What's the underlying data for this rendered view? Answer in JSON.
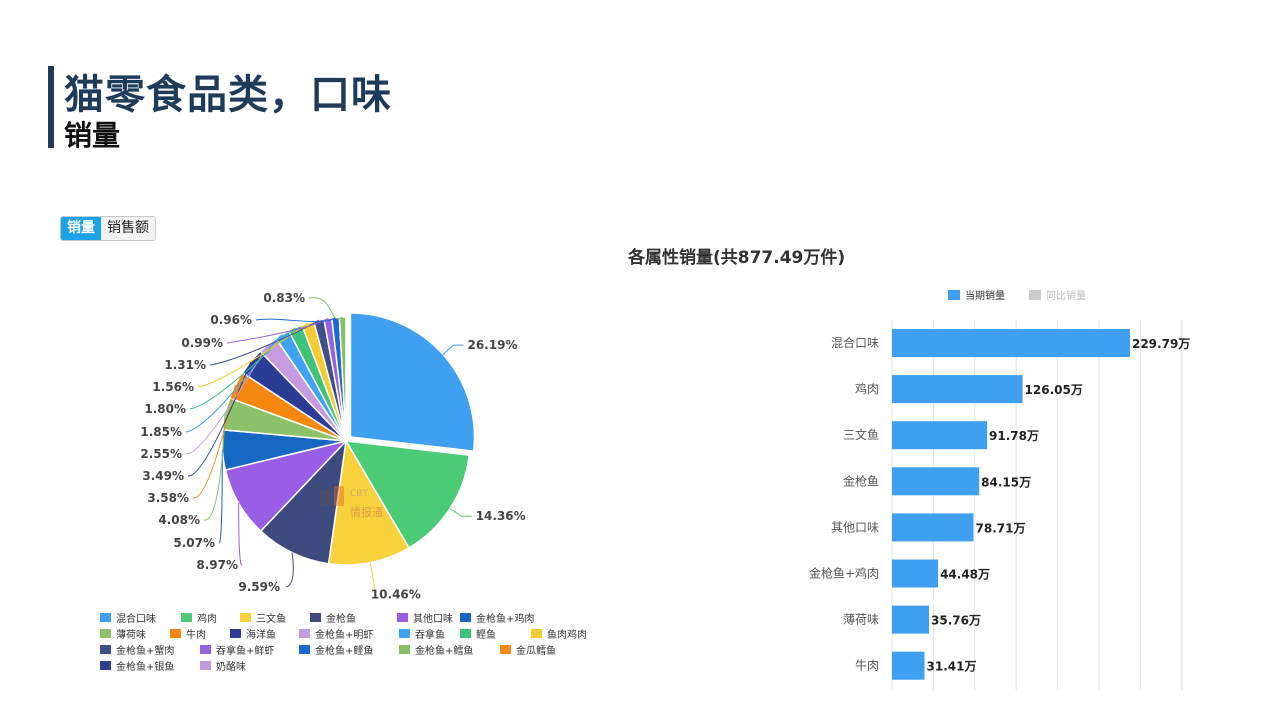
{
  "header": {
    "title": "猫零食品类，口味",
    "subtitle": "销量"
  },
  "tabs": [
    {
      "label": "销量",
      "active": true
    },
    {
      "label": "销售额",
      "active": false
    }
  ],
  "chart_data": [
    {
      "type": "pie",
      "labels": [
        "混合口味",
        "鸡肉",
        "三文鱼",
        "金枪鱼",
        "其他口味",
        "金枪鱼+鸡肉",
        "薄荷味",
        "牛肉",
        "海洋鱼",
        "金枪鱼+明虾",
        "吞拿鱼",
        "鲣鱼",
        "鱼肉鸡肉",
        "金枪鱼+蟹肉",
        "吞拿鱼+鲜虾",
        "金枪鱼+鲣鱼",
        "金枪鱼+鳕鱼",
        "金瓜鳕鱼",
        "金枪鱼+银鱼",
        "奶酪味"
      ],
      "values": [
        26.19,
        14.36,
        10.46,
        9.59,
        8.97,
        5.07,
        4.08,
        3.58,
        3.49,
        2.55,
        1.85,
        1.8,
        1.56,
        1.31,
        0.99,
        0.96,
        0.83,
        0.0,
        0.0,
        0.0
      ],
      "value_labels": [
        "26.19%",
        "14.36%",
        "10.46%",
        "9.59%",
        "8.97%",
        "5.07%",
        "4.08%",
        "3.58%",
        "3.49%",
        "2.55%",
        "1.85%",
        "1.80%",
        "1.56%",
        "1.31%",
        "0.99%",
        "0.96%",
        "0.83%",
        "",
        "",
        ""
      ],
      "colors": [
        "#3fa0f2",
        "#4ccb77",
        "#f8d23c",
        "#3d4a7e",
        "#9a5de6",
        "#1567c2",
        "#8cc26a",
        "#f6880f",
        "#2b3c94",
        "#c69be0",
        "#3ea4f2",
        "#3fc27a",
        "#f2cc30",
        "#414f88",
        "#9562e0",
        "#1a6ad0",
        "#88c068",
        "#f58a14",
        "#2d3e90",
        "#c29ad8"
      ],
      "legend": [
        "混合口味",
        "鸡肉",
        "三文鱼",
        "金枪鱼",
        "其他口味",
        "金枪鱼+鸡肉",
        "薄荷味",
        "牛肉",
        "海洋鱼",
        "金枪鱼+明虾",
        "吞拿鱼",
        "鲣鱼",
        "鱼肉鸡肉",
        "金枪鱼+蟹肉",
        "吞拿鱼+鲜虾",
        "金枪鱼+鲣鱼",
        "金枪鱼+鳕鱼",
        "金瓜鳕鱼",
        "金枪鱼+银鱼",
        "奶酪味"
      ],
      "legend_position": "bottom",
      "highlighted_slice": "混合口味"
    },
    {
      "type": "bar",
      "orientation": "horizontal",
      "title": "各属性销量(共877.49万件)",
      "categories": [
        "混合口味",
        "鸡肉",
        "三文鱼",
        "金枪鱼",
        "其他口味",
        "金枪鱼+鸡肉",
        "薄荷味",
        "牛肉"
      ],
      "values": [
        229.79,
        126.05,
        91.78,
        84.15,
        78.71,
        44.48,
        35.76,
        31.41
      ],
      "value_labels": [
        "229.79万",
        "126.05万",
        "91.78万",
        "84.15万",
        "78.71万",
        "44.48万",
        "35.76万",
        "31.41万"
      ],
      "series": [
        {
          "name": "当期销量",
          "color": "#3fa0f2"
        },
        {
          "name": "同比销量",
          "color": "#cccccc"
        }
      ],
      "xlim": [
        0,
        280
      ],
      "grid": true,
      "legend_position": "top-right"
    }
  ]
}
